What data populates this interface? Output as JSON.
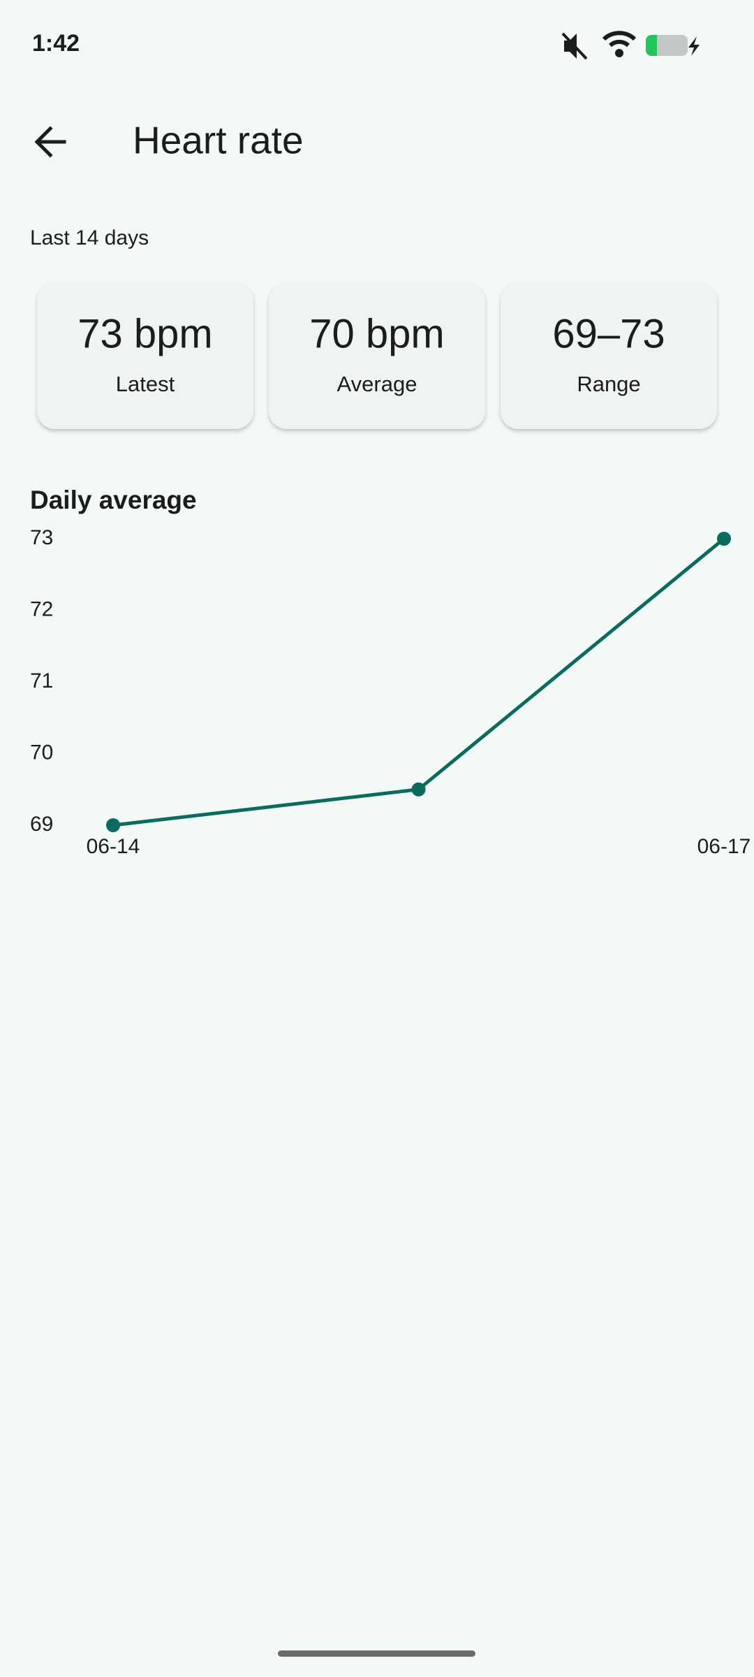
{
  "status_bar": {
    "time": "1:42"
  },
  "header": {
    "title": "Heart rate"
  },
  "period": "Last 14 days",
  "cards": [
    {
      "value": "73 bpm",
      "label": "Latest"
    },
    {
      "value": "70 bpm",
      "label": "Average"
    },
    {
      "value": "69–73",
      "label": "Range"
    }
  ],
  "chart_data": {
    "type": "line",
    "title": "Daily average",
    "categories": [
      "06-14",
      null,
      "06-17"
    ],
    "values": [
      69,
      69.5,
      73
    ],
    "color": "#0b6b5f",
    "ylim": [
      69,
      73
    ],
    "yticks": [
      69,
      70,
      71,
      72,
      73
    ],
    "grid": false
  }
}
